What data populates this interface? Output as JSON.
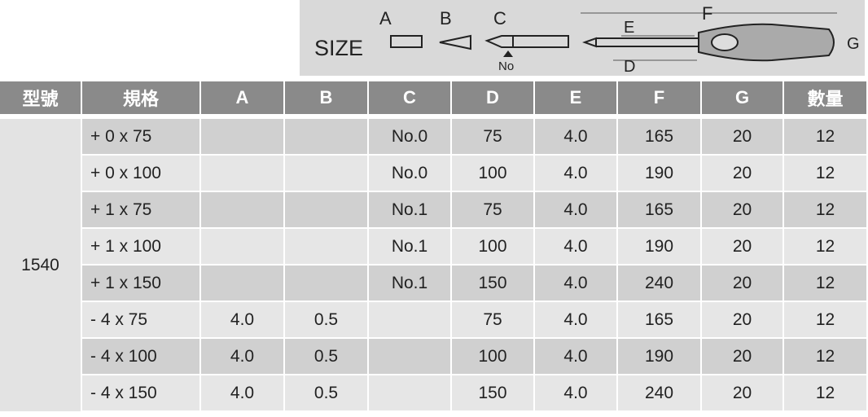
{
  "diagram": {
    "size_label": "SIZE",
    "labels": {
      "a": "A",
      "b": "B",
      "c": "C",
      "no": "No",
      "e": "E",
      "f": "F",
      "d": "D",
      "g": "G"
    }
  },
  "table": {
    "header": [
      "型號",
      "規格",
      "A",
      "B",
      "C",
      "D",
      "E",
      "F",
      "G",
      "數量"
    ],
    "model": "1540",
    "rows": [
      [
        "+ 0 x 75",
        null,
        null,
        "No.0",
        "75",
        "4.0",
        "165",
        "20",
        "12"
      ],
      [
        "+ 0 x 100",
        null,
        null,
        "No.0",
        "100",
        "4.0",
        "190",
        "20",
        "12"
      ],
      [
        "+ 1 x 75",
        null,
        null,
        "No.1",
        "75",
        "4.0",
        "165",
        "20",
        "12"
      ],
      [
        "+ 1 x 100",
        null,
        null,
        "No.1",
        "100",
        "4.0",
        "190",
        "20",
        "12"
      ],
      [
        "+ 1 x 150",
        null,
        null,
        "No.1",
        "150",
        "4.0",
        "240",
        "20",
        "12"
      ],
      [
        "- 4 x 75",
        "4.0",
        "0.5",
        null,
        "75",
        "4.0",
        "165",
        "20",
        "12"
      ],
      [
        "- 4 x 100",
        "4.0",
        "0.5",
        null,
        "100",
        "4.0",
        "190",
        "20",
        "12"
      ],
      [
        "- 4 x 150",
        "4.0",
        "0.5",
        null,
        "150",
        "4.0",
        "240",
        "20",
        "12"
      ]
    ]
  }
}
